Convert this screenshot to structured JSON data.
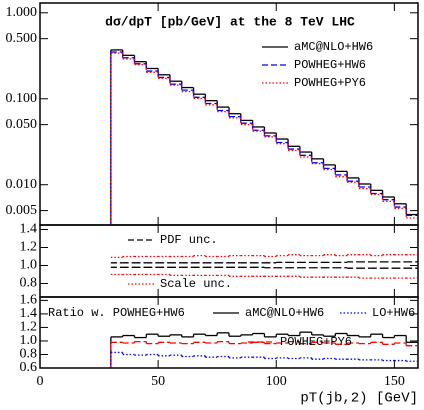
{
  "chart_data": [
    {
      "type": "histogram",
      "title": "dσ/dpT [pb/GeV] at the 8 TeV LHC",
      "log_y": true,
      "bins": [
        30,
        35,
        40,
        45,
        50,
        55,
        60,
        65,
        70,
        75,
        80,
        85,
        90,
        95,
        100,
        105,
        110,
        115,
        120,
        125,
        130,
        135,
        140,
        145,
        150,
        155,
        160
      ],
      "xlim": [
        0,
        160
      ],
      "xticks": [
        0,
        50,
        100,
        150
      ],
      "ylim": [
        0.0034,
        1.3
      ],
      "yticks": [
        {
          "value": 1,
          "label": "1.000"
        },
        {
          "value": 0.5,
          "label": "0.500"
        },
        {
          "value": 0.1,
          "label": "0.100"
        },
        {
          "value": 0.05,
          "label": "0.050"
        },
        {
          "value": 0.01,
          "label": "0.010"
        },
        {
          "value": 0.005,
          "label": "0.005"
        }
      ],
      "series": [
        {
          "name": "aMC@NLO+HW6",
          "color": "#000000",
          "style": "solid",
          "values": [
            0.37,
            0.32,
            0.27,
            0.225,
            0.19,
            0.16,
            0.135,
            0.113,
            0.095,
            0.08,
            0.067,
            0.056,
            0.047,
            0.04,
            0.034,
            0.028,
            0.024,
            0.02,
            0.017,
            0.0143,
            0.012,
            0.0102,
            0.0086,
            0.0072,
            0.006,
            0.0045
          ]
        },
        {
          "name": "POWHEG+HW6",
          "color": "#0000ff",
          "style": "dashed",
          "values": [
            0.35,
            0.3,
            0.255,
            0.21,
            0.177,
            0.148,
            0.126,
            0.104,
            0.088,
            0.073,
            0.062,
            0.052,
            0.043,
            0.037,
            0.031,
            0.026,
            0.022,
            0.018,
            0.0155,
            0.013,
            0.011,
            0.0094,
            0.0079,
            0.0067,
            0.0055,
            0.0044
          ]
        },
        {
          "name": "POWHEG+PY6",
          "color": "#ff0000",
          "style": "dotted",
          "values": [
            0.34,
            0.29,
            0.25,
            0.203,
            0.173,
            0.144,
            0.121,
            0.101,
            0.085,
            0.071,
            0.06,
            0.05,
            0.042,
            0.036,
            0.03,
            0.025,
            0.021,
            0.0176,
            0.015,
            0.0124,
            0.0107,
            0.009,
            0.0077,
            0.0064,
            0.0053,
            0.0041
          ]
        }
      ]
    },
    {
      "type": "band",
      "bins": [
        30,
        35,
        40,
        45,
        50,
        55,
        60,
        65,
        70,
        75,
        80,
        85,
        90,
        95,
        100,
        105,
        110,
        115,
        120,
        125,
        130,
        135,
        140,
        145,
        150,
        155,
        160
      ],
      "xlim": [
        0,
        160
      ],
      "xticks": [
        0,
        50,
        100,
        150
      ],
      "ylim": [
        0.65,
        1.45
      ],
      "yticks": [
        {
          "value": 0.8,
          "label": "0.8"
        },
        {
          "value": 1,
          "label": "1.0"
        },
        {
          "value": 1.2,
          "label": "1.2"
        },
        {
          "value": 1.4,
          "label": "1.4"
        }
      ],
      "bands": [
        {
          "name": "PDF unc.",
          "color": "#000000",
          "style": "dashed",
          "upper": [
            1.03,
            1.03,
            1.03,
            1.03,
            1.03,
            1.03,
            1.03,
            1.03,
            1.03,
            1.03,
            1.03,
            1.03,
            1.03,
            1.03,
            1.035,
            1.035,
            1.035,
            1.035,
            1.035,
            1.035,
            1.04,
            1.04,
            1.04,
            1.04,
            1.04,
            1.04
          ],
          "lower": [
            0.98,
            0.98,
            0.98,
            0.98,
            0.98,
            0.98,
            0.98,
            0.98,
            0.98,
            0.98,
            0.98,
            0.98,
            0.98,
            0.975,
            0.975,
            0.975,
            0.975,
            0.975,
            0.975,
            0.975,
            0.97,
            0.97,
            0.97,
            0.97,
            0.97,
            0.97
          ]
        },
        {
          "name": "Scale unc.",
          "color": "#ff0000",
          "style": "dotted",
          "upper": [
            1.09,
            1.1,
            1.1,
            1.1,
            1.1,
            1.1,
            1.1,
            1.11,
            1.1,
            1.1,
            1.11,
            1.11,
            1.11,
            1.1,
            1.11,
            1.12,
            1.11,
            1.11,
            1.12,
            1.11,
            1.12,
            1.12,
            1.11,
            1.12,
            1.12,
            1.12
          ],
          "lower": [
            0.9,
            0.9,
            0.9,
            0.9,
            0.9,
            0.89,
            0.89,
            0.89,
            0.89,
            0.89,
            0.88,
            0.88,
            0.88,
            0.88,
            0.88,
            0.88,
            0.87,
            0.87,
            0.87,
            0.87,
            0.87,
            0.86,
            0.86,
            0.86,
            0.86,
            0.86
          ]
        }
      ]
    },
    {
      "type": "histogram",
      "title": "Ratio w. POWHEG+HW6",
      "xlabel": "pT(jb,2) [GeV]",
      "bins": [
        30,
        35,
        40,
        45,
        50,
        55,
        60,
        65,
        70,
        75,
        80,
        85,
        90,
        95,
        100,
        105,
        110,
        115,
        120,
        125,
        130,
        135,
        140,
        145,
        150,
        155,
        160
      ],
      "xlim": [
        0,
        160
      ],
      "xticks": [
        0,
        50,
        100,
        150
      ],
      "ylim": [
        0.6,
        1.65
      ],
      "yticks": [
        {
          "value": 0.6,
          "label": "0.6"
        },
        {
          "value": 0.8,
          "label": "0.8"
        },
        {
          "value": 1,
          "label": "1.0"
        },
        {
          "value": 1.2,
          "label": "1.2"
        },
        {
          "value": 1.4,
          "label": "1.4"
        },
        {
          "value": 1.6,
          "label": "1.6"
        }
      ],
      "series": [
        {
          "name": "aMC@NLO+HW6",
          "color": "#000000",
          "style": "solid",
          "values": [
            1.06,
            1.08,
            1.05,
            1.1,
            1.07,
            1.09,
            1.06,
            1.1,
            1.08,
            1.12,
            1.07,
            1.09,
            1.11,
            1.06,
            1.1,
            1.08,
            1.13,
            1.09,
            1.07,
            1.11,
            1.08,
            1.06,
            1.1,
            1.05,
            1.08,
            0.98
          ]
        },
        {
          "name": "POWHEG+PY6",
          "color": "#ff0000",
          "style": "dashed",
          "values": [
            0.98,
            0.97,
            0.99,
            0.96,
            0.98,
            0.97,
            0.96,
            0.98,
            0.97,
            0.99,
            0.96,
            0.97,
            0.98,
            0.96,
            0.97,
            0.99,
            0.96,
            0.98,
            0.97,
            0.95,
            0.97,
            0.96,
            0.98,
            0.95,
            0.97,
            0.93
          ]
        },
        {
          "name": "LO+HW6",
          "color": "#0000ff",
          "style": "dotted",
          "values": [
            0.83,
            0.8,
            0.79,
            0.8,
            0.78,
            0.79,
            0.77,
            0.78,
            0.76,
            0.77,
            0.75,
            0.76,
            0.76,
            0.74,
            0.75,
            0.74,
            0.75,
            0.73,
            0.74,
            0.73,
            0.73,
            0.72,
            0.72,
            0.71,
            0.71,
            0.7
          ]
        }
      ]
    }
  ]
}
